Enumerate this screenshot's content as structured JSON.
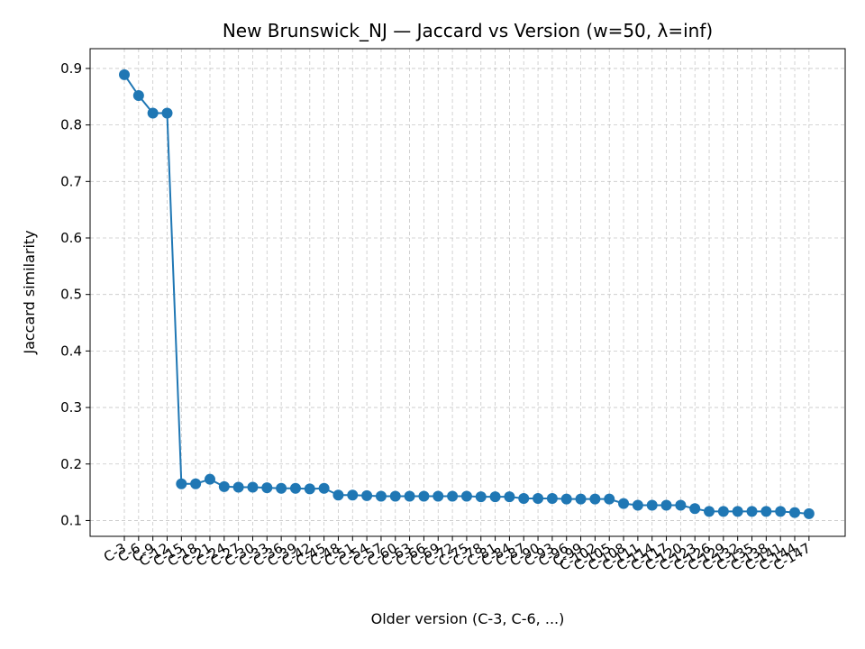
{
  "chart_data": {
    "type": "line",
    "title": "New Brunswick_NJ — Jaccard vs Version (w=50, λ=inf)",
    "xlabel": "Older version (C-3, C-6, ...)",
    "ylabel": "Jaccard similarity",
    "ylim": [
      0.072,
      0.935
    ],
    "yticks": [
      0.1,
      0.2,
      0.3,
      0.4,
      0.5,
      0.6,
      0.7,
      0.8,
      0.9
    ],
    "grid": true,
    "line_color": "#1f77b4",
    "categories": [
      "C-3",
      "C-6",
      "C-9",
      "C-12",
      "C-15",
      "C-18",
      "C-21",
      "C-24",
      "C-27",
      "C-30",
      "C-33",
      "C-36",
      "C-39",
      "C-42",
      "C-45",
      "C-48",
      "C-51",
      "C-54",
      "C-57",
      "C-60",
      "C-63",
      "C-66",
      "C-69",
      "C-72",
      "C-75",
      "C-78",
      "C-81",
      "C-84",
      "C-87",
      "C-90",
      "C-93",
      "C-96",
      "C-99",
      "C-102",
      "C-105",
      "C-108",
      "C-111",
      "C-114",
      "C-117",
      "C-120",
      "C-123",
      "C-126",
      "C-129",
      "C-132",
      "C-135",
      "C-138",
      "C-141",
      "C-144",
      "C-147"
    ],
    "series": [
      {
        "values": [
          0.889,
          0.852,
          0.821,
          0.821,
          0.165,
          0.165,
          0.173,
          0.16,
          0.159,
          0.159,
          0.158,
          0.157,
          0.157,
          0.156,
          0.157,
          0.145,
          0.145,
          0.144,
          0.143,
          0.143,
          0.143,
          0.143,
          0.143,
          0.143,
          0.143,
          0.142,
          0.142,
          0.142,
          0.139,
          0.139,
          0.139,
          0.138,
          0.138,
          0.138,
          0.138,
          0.13,
          0.127,
          0.127,
          0.127,
          0.127,
          0.121,
          0.116,
          0.116,
          0.116,
          0.116,
          0.116,
          0.116,
          0.114,
          0.112
        ]
      }
    ]
  }
}
